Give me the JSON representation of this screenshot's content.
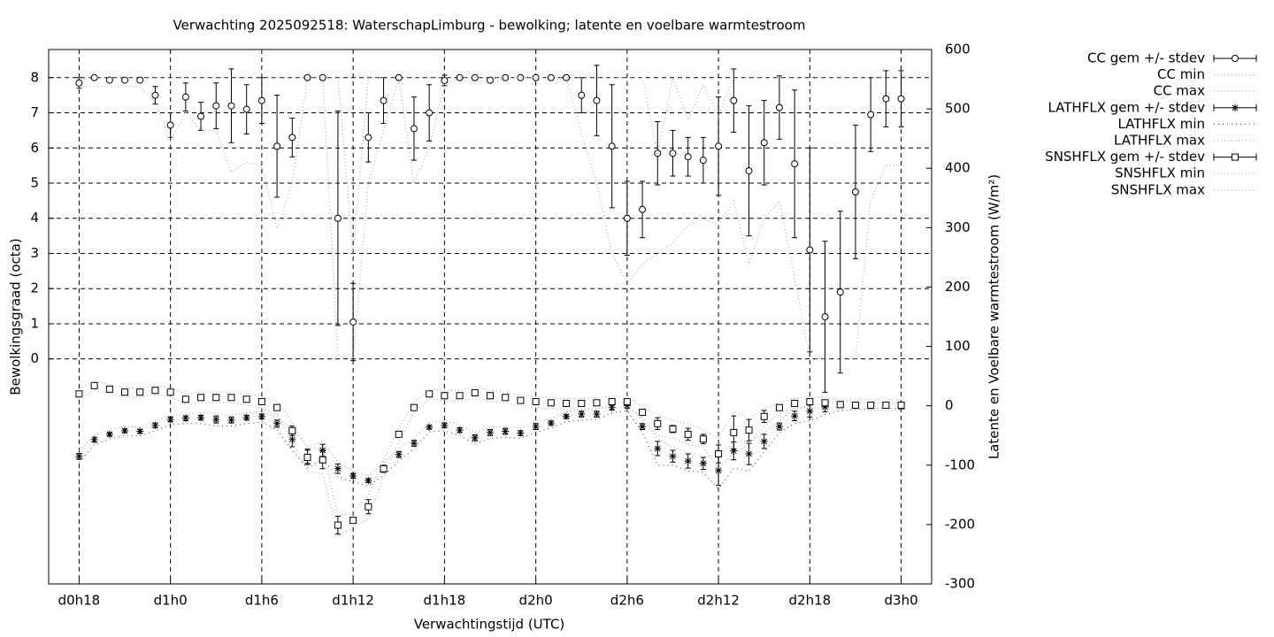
{
  "chart_data": {
    "type": "errorbar-line",
    "title": "Verwachting 2025092518: WaterschapLimburg - bewolking; latente en voelbare warmtestroom",
    "xlabel": "Verwachtingstijd (UTC)",
    "ylabel": "Bewolkingsgraad (octa)",
    "y2label": "Latente en Voelbare warmtestroom (W/m²)",
    "grid": true,
    "legend": "outside-right",
    "x": [
      18,
      19,
      20,
      21,
      22,
      23,
      24,
      25,
      26,
      27,
      28,
      29,
      30,
      31,
      32,
      33,
      34,
      35,
      36,
      37,
      38,
      39,
      40,
      41,
      42,
      43,
      44,
      45,
      46,
      47,
      48,
      49,
      50,
      51,
      52,
      53,
      54,
      55,
      56,
      57,
      58,
      59,
      60,
      61,
      62,
      63,
      64,
      65,
      66,
      67,
      68,
      69,
      70,
      71,
      72
    ],
    "xlim": [
      16,
      74
    ],
    "xticks": [
      {
        "value": 18,
        "label": "d0h18"
      },
      {
        "value": 24,
        "label": "d1h0"
      },
      {
        "value": 30,
        "label": "d1h6"
      },
      {
        "value": 36,
        "label": "d1h12"
      },
      {
        "value": 42,
        "label": "d1h18"
      },
      {
        "value": 48,
        "label": "d2h0"
      },
      {
        "value": 54,
        "label": "d2h6"
      },
      {
        "value": 60,
        "label": "d2h12"
      },
      {
        "value": 66,
        "label": "d2h18"
      },
      {
        "value": 72,
        "label": "d3h0"
      }
    ],
    "ylim": [
      -6.4,
      8.8
    ],
    "yticks": [
      0,
      1,
      2,
      3,
      4,
      5,
      6,
      7,
      8
    ],
    "y2lim": [
      -300,
      600
    ],
    "y2ticks": [
      -300,
      -200,
      -100,
      0,
      100,
      200,
      300,
      400,
      500,
      600
    ],
    "series": [
      {
        "name": "CC gem +/- stdev",
        "color": "#000000",
        "marker": "circle",
        "axis": "y",
        "values": [
          7.85,
          8,
          7.93,
          7.93,
          7.93,
          7.5,
          6.65,
          7.45,
          6.9,
          7.2,
          7.2,
          7.1,
          7.35,
          6.05,
          6.3,
          8,
          8,
          4,
          1.05,
          6.3,
          7.35,
          8,
          6.55,
          7,
          7.92,
          8,
          8,
          7.93,
          8,
          8,
          8,
          8,
          8,
          7.5,
          7.35,
          6.05,
          4,
          4.25,
          5.85,
          5.85,
          5.75,
          5.65,
          6.05,
          7.35,
          5.35,
          6.15,
          7.15,
          5.55,
          3.1,
          1.2,
          1.9,
          4.75,
          6.95,
          7.4,
          7.4
        ],
        "errors": [
          0.15,
          0.05,
          0,
          0,
          0,
          0.25,
          0.35,
          0.4,
          0.4,
          0.65,
          1.05,
          0.7,
          0.65,
          1.45,
          0.55,
          0,
          0,
          3.05,
          1.1,
          0.7,
          0.65,
          0,
          0.9,
          0.8,
          0.15,
          0,
          0,
          0,
          0,
          0,
          0,
          0,
          0,
          0.5,
          1,
          1.75,
          1.05,
          0.8,
          0.9,
          0.65,
          0.55,
          0.65,
          1.4,
          0.9,
          1.85,
          1.2,
          0.9,
          2.1,
          2.9,
          2.15,
          2.3,
          1.9,
          1.05,
          0.8,
          0.8
        ]
      },
      {
        "name": "CC min",
        "color": "#aaaaaa",
        "marker": "none",
        "dash": "1 3",
        "axis": "y",
        "values": [
          7.75,
          7.75,
          7.75,
          7.75,
          7.75,
          7.3,
          6.2,
          7,
          6.5,
          6.5,
          5.3,
          5.6,
          5.5,
          3.7,
          5,
          8,
          8,
          0.1,
          0,
          5,
          6.5,
          8,
          5,
          6,
          7.8,
          8,
          8,
          7.8,
          8,
          8,
          8,
          8,
          8,
          6.4,
          5,
          3,
          2.15,
          2.7,
          3,
          3.3,
          3.8,
          4,
          3.8,
          4.5,
          2.7,
          4,
          4.5,
          2.3,
          0,
          0,
          0,
          0,
          4.5,
          5.5,
          5.5
        ]
      },
      {
        "name": "CC max",
        "color": "#aaaaaa",
        "marker": "none",
        "dash": "1 3",
        "axis": "y",
        "values": [
          8,
          8,
          8,
          8,
          8,
          8,
          8,
          8,
          8,
          8,
          8,
          8,
          8,
          8,
          8,
          8,
          8,
          8,
          3,
          8,
          8,
          8,
          8,
          8,
          8,
          8,
          8,
          8,
          8,
          8,
          8,
          8,
          8,
          8,
          8,
          8,
          8,
          8,
          5.8,
          8,
          6.8,
          7.8,
          6.9,
          8,
          8,
          8,
          8,
          8,
          8,
          8,
          8,
          8,
          8,
          8,
          8
        ]
      },
      {
        "name": "LATHFLX gem +/- stdev",
        "color": "#000000",
        "marker": "star",
        "axis": "y2",
        "values": [
          -85,
          -57,
          -48,
          -42,
          -43,
          -33,
          -23,
          -21,
          -20,
          -23,
          -24,
          -20,
          -18,
          -30,
          -57,
          -85,
          -75,
          -106,
          -118,
          -126,
          -106,
          -82,
          -63,
          -36,
          -33,
          -41,
          -54,
          -45,
          -43,
          -46,
          -35,
          -29,
          -18,
          -14,
          -14,
          -3,
          0,
          -35,
          -72,
          -85,
          -93,
          -97,
          -109,
          -76,
          -81,
          -60,
          -35,
          -17,
          -9,
          -2,
          2,
          1,
          0,
          1,
          -2
        ],
        "errors": [
          5,
          4,
          3,
          3,
          3,
          4,
          4,
          4,
          4,
          6,
          5,
          4,
          4,
          6,
          12,
          12,
          10,
          8,
          4,
          3,
          5,
          5,
          5,
          3,
          4,
          4,
          5,
          5,
          5,
          4,
          5,
          3,
          3,
          5,
          5,
          4,
          4,
          5,
          12,
          10,
          12,
          10,
          25,
          15,
          18,
          12,
          6,
          8,
          10,
          8,
          4,
          3,
          2,
          2,
          2
        ]
      },
      {
        "name": "LATHFLX min",
        "color": "#555555",
        "marker": "none",
        "dash": "1 4",
        "axis": "y2",
        "values": [
          -95,
          -65,
          -56,
          -50,
          -51,
          -42,
          -32,
          -30,
          -30,
          -34,
          -34,
          -30,
          -27,
          -40,
          -75,
          -105,
          -90,
          -120,
          -128,
          -135,
          -117,
          -93,
          -72,
          -44,
          -42,
          -50,
          -64,
          -55,
          -53,
          -55,
          -45,
          -37,
          -27,
          -24,
          -23,
          -12,
          -8,
          -45,
          -100,
          -100,
          -110,
          -112,
          -140,
          -105,
          -110,
          -78,
          -45,
          -30,
          -25,
          -15,
          -8,
          -6,
          -5,
          -4,
          -6
        ]
      },
      {
        "name": "LATHFLX max",
        "color": "#aaaaaa",
        "marker": "none",
        "dash": "1 3",
        "axis": "y2",
        "values": [
          -75,
          -50,
          -40,
          -35,
          -36,
          -25,
          -16,
          -14,
          -12,
          -14,
          -16,
          -12,
          -10,
          -20,
          -40,
          -68,
          -60,
          -95,
          -110,
          -118,
          -96,
          -72,
          -55,
          -28,
          -25,
          -32,
          -45,
          -36,
          -35,
          -38,
          -26,
          -22,
          -10,
          -6,
          -6,
          3,
          6,
          -25,
          -55,
          -70,
          -78,
          -85,
          -85,
          -60,
          -60,
          -45,
          -25,
          -5,
          0,
          5,
          8,
          6,
          4,
          5,
          2
        ]
      },
      {
        "name": "SNSHFLX gem +/- stdev",
        "color": "#000000",
        "marker": "square",
        "axis": "y2",
        "values": [
          20,
          34,
          28,
          23,
          23,
          26,
          23,
          11,
          14,
          14,
          14,
          11,
          7,
          -3,
          -42,
          -87,
          -91,
          -201,
          -193,
          -170,
          -106,
          -48,
          -3,
          20,
          17,
          17,
          22,
          17,
          14,
          9,
          7,
          5,
          4,
          4,
          5,
          7,
          7,
          -11,
          -30,
          -39,
          -48,
          -56,
          -81,
          -45,
          -41,
          -18,
          -3,
          4,
          7,
          5,
          2,
          1,
          1,
          1,
          1
        ],
        "errors": [
          4,
          2,
          1,
          1,
          1,
          1,
          1,
          1,
          1,
          1,
          1,
          1,
          3,
          3,
          8,
          12,
          15,
          15,
          5,
          12,
          6,
          5,
          3,
          2,
          5,
          3,
          5,
          5,
          2,
          2,
          3,
          2,
          2,
          2,
          3,
          3,
          3,
          2,
          10,
          6,
          10,
          8,
          15,
          28,
          18,
          10,
          3,
          2,
          5,
          3,
          2,
          2,
          2,
          2,
          2
        ]
      },
      {
        "name": "SNSHFLX min",
        "color": "#aaaaaa",
        "marker": "none",
        "dash": "1 3",
        "axis": "y2",
        "values": [
          12,
          26,
          20,
          15,
          15,
          18,
          15,
          3,
          5,
          5,
          5,
          2,
          -5,
          -15,
          -60,
          -110,
          -115,
          -220,
          -205,
          -190,
          -120,
          -60,
          -12,
          12,
          8,
          8,
          12,
          8,
          5,
          0,
          -3,
          -5,
          -6,
          -6,
          -5,
          -3,
          -3,
          -20,
          -50,
          -55,
          -65,
          -70,
          -105,
          -80,
          -65,
          -35,
          -12,
          -5,
          -3,
          -5,
          -8,
          -8,
          -8,
          -8,
          -8
        ]
      },
      {
        "name": "SNSHFLX max",
        "color": "#aaaaaa",
        "marker": "none",
        "dash": "1 3",
        "axis": "y2",
        "values": [
          28,
          42,
          36,
          30,
          30,
          34,
          30,
          20,
          23,
          23,
          23,
          20,
          16,
          8,
          -28,
          -70,
          -72,
          -185,
          -180,
          -150,
          -92,
          -38,
          6,
          28,
          26,
          26,
          32,
          26,
          22,
          18,
          16,
          14,
          12,
          12,
          14,
          16,
          16,
          -2,
          -15,
          -25,
          -30,
          -40,
          -55,
          -10,
          -20,
          -5,
          6,
          12,
          16,
          14,
          10,
          10,
          10,
          10,
          10
        ]
      }
    ]
  }
}
